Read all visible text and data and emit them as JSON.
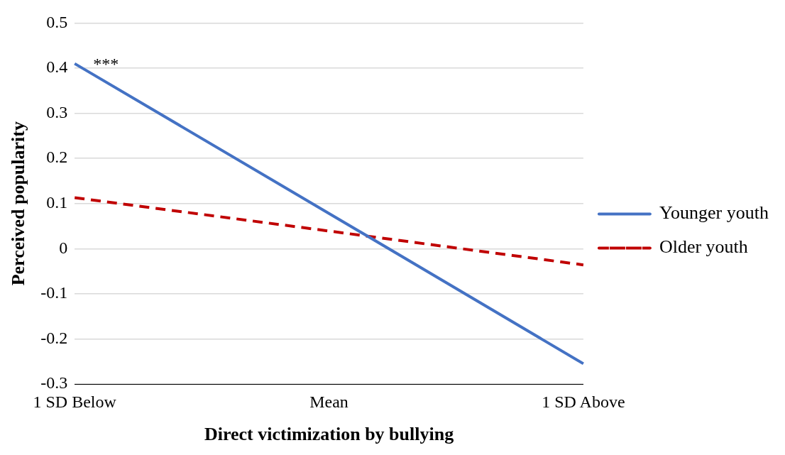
{
  "chart_data": {
    "type": "line",
    "xlabel": "Direct victimization by bullying",
    "ylabel": "Perceived popularity",
    "categories": [
      "1 SD Below",
      "Mean",
      "1 SD Above"
    ],
    "series": [
      {
        "name": "Younger youth",
        "color": "#4472c4",
        "values": [
          0.41,
          0.078,
          -0.255
        ],
        "line_style": "solid"
      },
      {
        "name": "Older youth",
        "color": "#c00000",
        "values": [
          0.113,
          0.039,
          -0.036
        ],
        "line_style": "dashed"
      }
    ],
    "ylim": [
      -0.3,
      0.5
    ],
    "yticks": [
      -0.3,
      -0.2,
      -0.1,
      0,
      0.1,
      0.2,
      0.3,
      0.4,
      0.5
    ],
    "grid": "y",
    "legend": "right",
    "marker": "none",
    "annotations": [
      {
        "text": "***",
        "x": "1 SD Below",
        "y": 0.41
      }
    ]
  }
}
